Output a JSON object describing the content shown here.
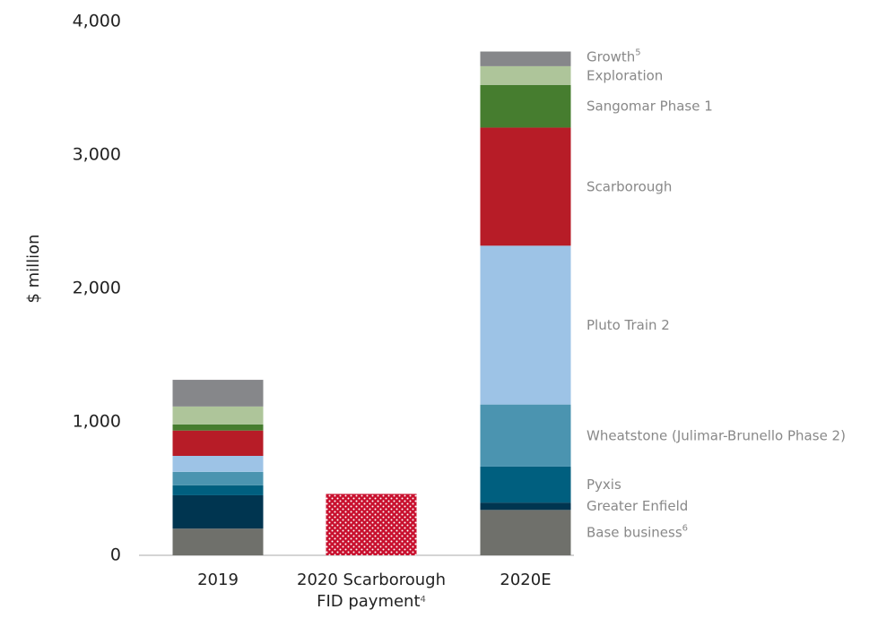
{
  "chart_data": {
    "type": "stacked_bar",
    "y_label": "$ million",
    "categories": [
      "2019",
      "2020 Scarborough FID payment",
      "2020E"
    ],
    "category_footnotes": [
      null,
      "4",
      null
    ],
    "ylim": [
      0,
      4000
    ],
    "yticks": [
      0,
      {
        "value": 1000,
        "label": "1,000"
      },
      {
        "value": 2000,
        "label": "2,000"
      },
      {
        "value": 3000,
        "label": "3,000"
      },
      {
        "value": 4000,
        "label": "4,000"
      }
    ],
    "grid": false,
    "legend": "right",
    "series": [
      {
        "name": "Base business",
        "footnote": "6",
        "color": "#6f706b",
        "values": [
          200,
          null,
          340
        ]
      },
      {
        "name": "Greater Enfield",
        "color": "#003550",
        "values": [
          250,
          null,
          55
        ]
      },
      {
        "name": "Pyxis",
        "color": "#005f7f",
        "values": [
          75,
          null,
          270
        ]
      },
      {
        "name": "Wheatstone (Julimar-Brunello Phase 2)",
        "color": "#4b94b0",
        "values": [
          100,
          null,
          465
        ]
      },
      {
        "name": "Pluto Train 2",
        "color": "#9dc3e6",
        "values": [
          120,
          null,
          1190
        ]
      },
      {
        "name": "Scarborough",
        "color": "#b71c27",
        "values": [
          190,
          460,
          885
        ],
        "dotted": [
          false,
          true,
          false
        ]
      },
      {
        "name": "Sangomar Phase 1",
        "color": "#467d2f",
        "values": [
          45,
          null,
          320
        ]
      },
      {
        "name": "Exploration",
        "color": "#aec59a",
        "values": [
          135,
          null,
          140
        ]
      },
      {
        "name": "Growth",
        "footnote": "5",
        "color": "#86878a",
        "values": [
          200,
          null,
          110
        ]
      }
    ]
  }
}
